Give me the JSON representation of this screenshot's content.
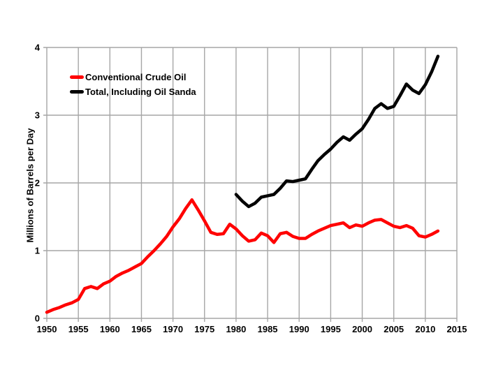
{
  "page": {
    "background": "#ffffff",
    "text_color": "#000000"
  },
  "chart_data": {
    "type": "line",
    "title": "",
    "xlabel": "",
    "ylabel": "Millions of Barrels per Day",
    "xlim": [
      1950,
      2015
    ],
    "ylim": [
      0,
      4
    ],
    "x_ticks": [
      1950,
      1955,
      1960,
      1965,
      1970,
      1975,
      1980,
      1985,
      1990,
      1995,
      2000,
      2005,
      2010,
      2015
    ],
    "y_ticks": [
      0,
      1,
      2,
      3,
      4
    ],
    "grid": true,
    "grid_color": "#a6a6a6",
    "legend_position": "top-left-inside",
    "series": [
      {
        "key": "conventional",
        "name": "Conventional Crude Oil",
        "color": "#ff0000",
        "x_start": 1950,
        "x_step": 1,
        "values": [
          0.09,
          0.13,
          0.16,
          0.2,
          0.23,
          0.28,
          0.44,
          0.47,
          0.44,
          0.51,
          0.55,
          0.62,
          0.67,
          0.71,
          0.76,
          0.81,
          0.91,
          1.0,
          1.1,
          1.21,
          1.35,
          1.47,
          1.62,
          1.75,
          1.6,
          1.44,
          1.27,
          1.24,
          1.25,
          1.39,
          1.32,
          1.22,
          1.14,
          1.16,
          1.26,
          1.22,
          1.12,
          1.25,
          1.27,
          1.21,
          1.18,
          1.18,
          1.24,
          1.29,
          1.33,
          1.37,
          1.39,
          1.41,
          1.34,
          1.38,
          1.36,
          1.41,
          1.45,
          1.46,
          1.41,
          1.36,
          1.34,
          1.37,
          1.33,
          1.22,
          1.2,
          1.24,
          1.29
        ]
      },
      {
        "key": "total",
        "name": "Total, Including Oil Sanda",
        "color": "#000000",
        "x_start": 1980,
        "x_step": 1,
        "values": [
          1.83,
          1.73,
          1.65,
          1.7,
          1.79,
          1.81,
          1.83,
          1.92,
          2.03,
          2.02,
          2.04,
          2.06,
          2.2,
          2.33,
          2.42,
          2.5,
          2.6,
          2.68,
          2.63,
          2.72,
          2.8,
          2.94,
          3.1,
          3.17,
          3.1,
          3.13,
          3.29,
          3.46,
          3.37,
          3.32,
          3.45,
          3.64,
          3.87
        ]
      }
    ]
  }
}
